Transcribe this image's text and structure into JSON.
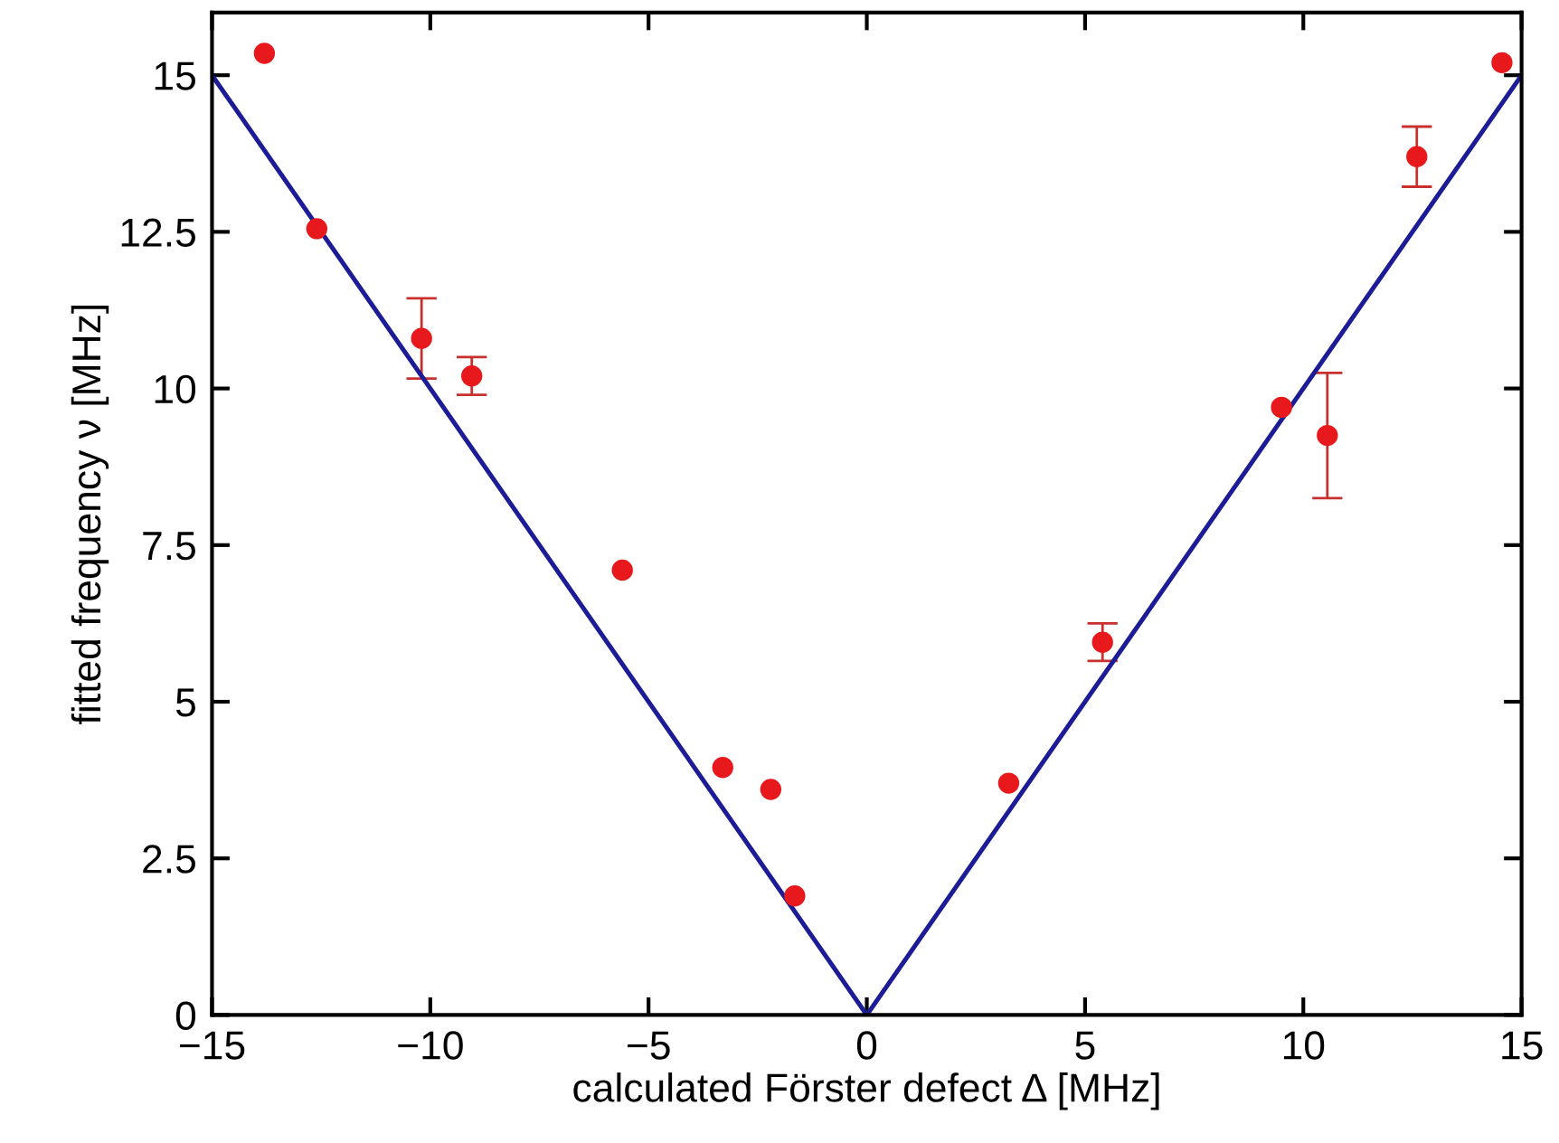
{
  "chart_data": {
    "type": "scatter",
    "xlabel": "calculated Förster defect Δ [MHz]",
    "ylabel": "fitted frequency ν [MHz]",
    "xlim": [
      -15,
      15
    ],
    "ylim": [
      0,
      16
    ],
    "xticks": [
      {
        "value": -15,
        "label": "−15"
      },
      {
        "value": -10,
        "label": "−10"
      },
      {
        "value": -5,
        "label": "−5"
      },
      0,
      5,
      10,
      15
    ],
    "yticks": [
      0,
      2.5,
      5,
      7.5,
      10,
      12.5,
      15
    ],
    "grid": false,
    "legend": false,
    "series": [
      {
        "color": "#e8191c",
        "marker": "circle",
        "x": [
          -13.8,
          -12.6,
          -10.2,
          -9.05,
          -5.6,
          -3.3,
          -2.2,
          -1.65,
          3.25,
          5.4,
          9.5,
          10.55,
          12.6,
          14.55
        ],
        "values": [
          15.35,
          12.55,
          10.8,
          10.2,
          7.1,
          3.95,
          3.6,
          1.9,
          3.7,
          5.95,
          9.7,
          9.25,
          13.7,
          15.2
        ],
        "errors": [
          null,
          null,
          0.64,
          0.3,
          null,
          null,
          null,
          null,
          null,
          0.3,
          null,
          1.0,
          0.48,
          null
        ]
      },
      {
        "type": "line",
        "color": "#1c1c96",
        "marker": "none",
        "line_style": "solid",
        "x": [
          -15,
          0,
          15
        ],
        "values": [
          15,
          0,
          15
        ]
      }
    ]
  }
}
